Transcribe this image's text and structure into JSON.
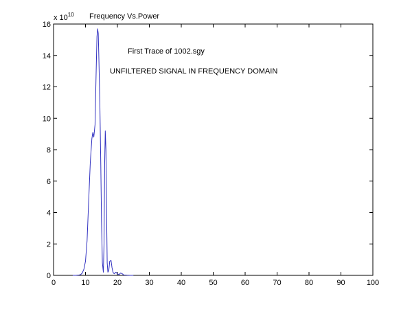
{
  "chart_data": {
    "type": "line",
    "title": "Frequency Vs.Power",
    "annotations": [
      "First Trace of 1002.sgy",
      "UNFILTERED SIGNAL IN FREQUENCY DOMAIN"
    ],
    "y_exponent_label": "x 10",
    "y_exponent": "10",
    "xlim": [
      0,
      100
    ],
    "ylim": [
      0,
      16
    ],
    "x_ticks": [
      0,
      10,
      20,
      30,
      40,
      50,
      60,
      70,
      80,
      90,
      100
    ],
    "y_ticks": [
      0,
      2,
      4,
      6,
      8,
      10,
      12,
      14,
      16
    ],
    "grid": false,
    "series": [
      {
        "color": "#3030c0",
        "x": [
          6,
          7,
          8,
          8.5,
          9,
          9.5,
          10,
          10.5,
          11,
          11.5,
          12,
          12.3,
          12.6,
          13,
          13.3,
          13.6,
          13.8,
          14,
          14.2,
          14.5,
          14.8,
          15,
          15.3,
          15.6,
          15.8,
          16,
          16.2,
          16.4,
          16.6,
          16.8,
          17,
          17.3,
          17.6,
          18,
          18.3,
          18.6,
          19,
          19.5,
          20,
          20.5,
          21,
          21.5,
          22,
          23,
          24,
          25
        ],
        "y": [
          0,
          0,
          0.02,
          0.05,
          0.15,
          0.4,
          0.9,
          2.2,
          4.8,
          7.2,
          8.7,
          9.1,
          8.8,
          9.6,
          12.5,
          15.2,
          15.7,
          15.4,
          13.8,
          11.0,
          7.0,
          3.5,
          0.8,
          0.2,
          2.0,
          7.0,
          9.2,
          8.0,
          4.0,
          0.8,
          0.2,
          0.3,
          0.9,
          0.95,
          0.5,
          0.2,
          0.1,
          0.2,
          0.1,
          0.05,
          0.15,
          0.1,
          0.02,
          0.01,
          0,
          0
        ]
      }
    ]
  }
}
